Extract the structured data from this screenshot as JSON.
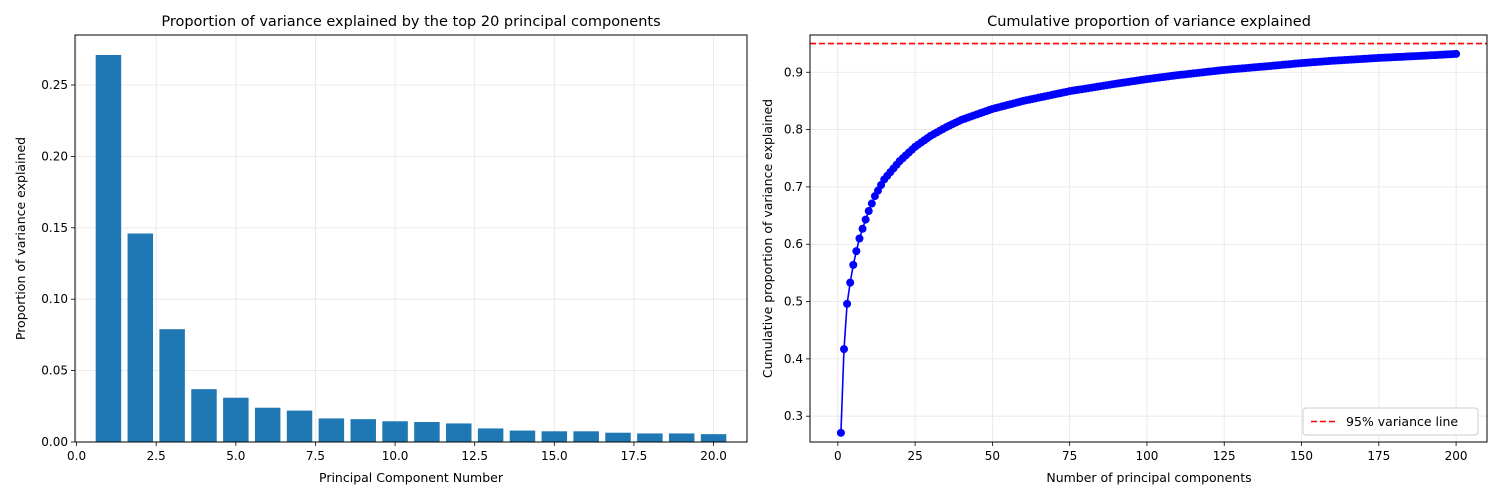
{
  "colors": {
    "bar": "#1f77b4",
    "line": "#0000ff",
    "threshold": "#ff0000",
    "grid": "#e6e6e6"
  },
  "chart_data": [
    {
      "type": "bar",
      "title": "Proportion of variance explained by the top 20 principal components",
      "xlabel": "Principal Component Number",
      "ylabel": "Proportion of variance explained",
      "xlim": [
        -0.05,
        21.05
      ],
      "ylim": [
        0,
        0.285
      ],
      "xticks": [
        0,
        2.5,
        5,
        7.5,
        10,
        12.5,
        15,
        17.5,
        20
      ],
      "xtick_labels": [
        "0.0",
        "2.5",
        "5.0",
        "7.5",
        "10.0",
        "12.5",
        "15.0",
        "17.5",
        "20.0"
      ],
      "yticks": [
        0,
        0.05,
        0.1,
        0.15,
        0.2,
        0.25
      ],
      "ytick_labels": [
        "0.00",
        "0.05",
        "0.10",
        "0.15",
        "0.20",
        "0.25"
      ],
      "grid": true,
      "x": [
        1,
        2,
        3,
        4,
        5,
        6,
        7,
        8,
        9,
        10,
        11,
        12,
        13,
        14,
        15,
        16,
        17,
        18,
        19,
        20
      ],
      "values": [
        0.271,
        0.146,
        0.079,
        0.037,
        0.031,
        0.024,
        0.022,
        0.0165,
        0.016,
        0.0145,
        0.014,
        0.013,
        0.0095,
        0.008,
        0.0075,
        0.0075,
        0.0065,
        0.006,
        0.006,
        0.0055
      ]
    },
    {
      "type": "line",
      "title": "Cumulative proportion of variance explained",
      "xlabel": "Number of principal components",
      "ylabel": "Cumulative proportion of variance explained",
      "xlim": [
        -9,
        210
      ],
      "ylim": [
        0.255,
        0.965
      ],
      "xticks": [
        0,
        25,
        50,
        75,
        100,
        125,
        150,
        175,
        200
      ],
      "xtick_labels": [
        "0",
        "25",
        "50",
        "75",
        "100",
        "125",
        "150",
        "175",
        "200"
      ],
      "yticks": [
        0.3,
        0.4,
        0.5,
        0.6,
        0.7,
        0.8,
        0.9
      ],
      "ytick_labels": [
        "0.3",
        "0.4",
        "0.5",
        "0.6",
        "0.7",
        "0.8",
        "0.9"
      ],
      "grid": true,
      "legend_position": "bottom-right",
      "series": [
        {
          "name": "",
          "points": [
            [
              1,
              0.271
            ],
            [
              2,
              0.417
            ],
            [
              3,
              0.496
            ],
            [
              4,
              0.533
            ],
            [
              5,
              0.564
            ],
            [
              6,
              0.588
            ],
            [
              7,
              0.61
            ],
            [
              8,
              0.627
            ],
            [
              9,
              0.643
            ],
            [
              10,
              0.658
            ],
            [
              12,
              0.684
            ],
            [
              15,
              0.713
            ],
            [
              20,
              0.745
            ],
            [
              25,
              0.77
            ],
            [
              30,
              0.789
            ],
            [
              35,
              0.804
            ],
            [
              40,
              0.817
            ],
            [
              50,
              0.836
            ],
            [
              60,
              0.85
            ],
            [
              75,
              0.867
            ],
            [
              90,
              0.88
            ],
            [
              100,
              0.888
            ],
            [
              110,
              0.895
            ],
            [
              125,
              0.904
            ],
            [
              140,
              0.911
            ],
            [
              150,
              0.916
            ],
            [
              160,
              0.92
            ],
            [
              175,
              0.925
            ],
            [
              190,
              0.929
            ],
            [
              200,
              0.932
            ]
          ]
        }
      ],
      "hline": {
        "y": 0.95,
        "label": "95% variance line",
        "style": "dashed"
      }
    }
  ]
}
